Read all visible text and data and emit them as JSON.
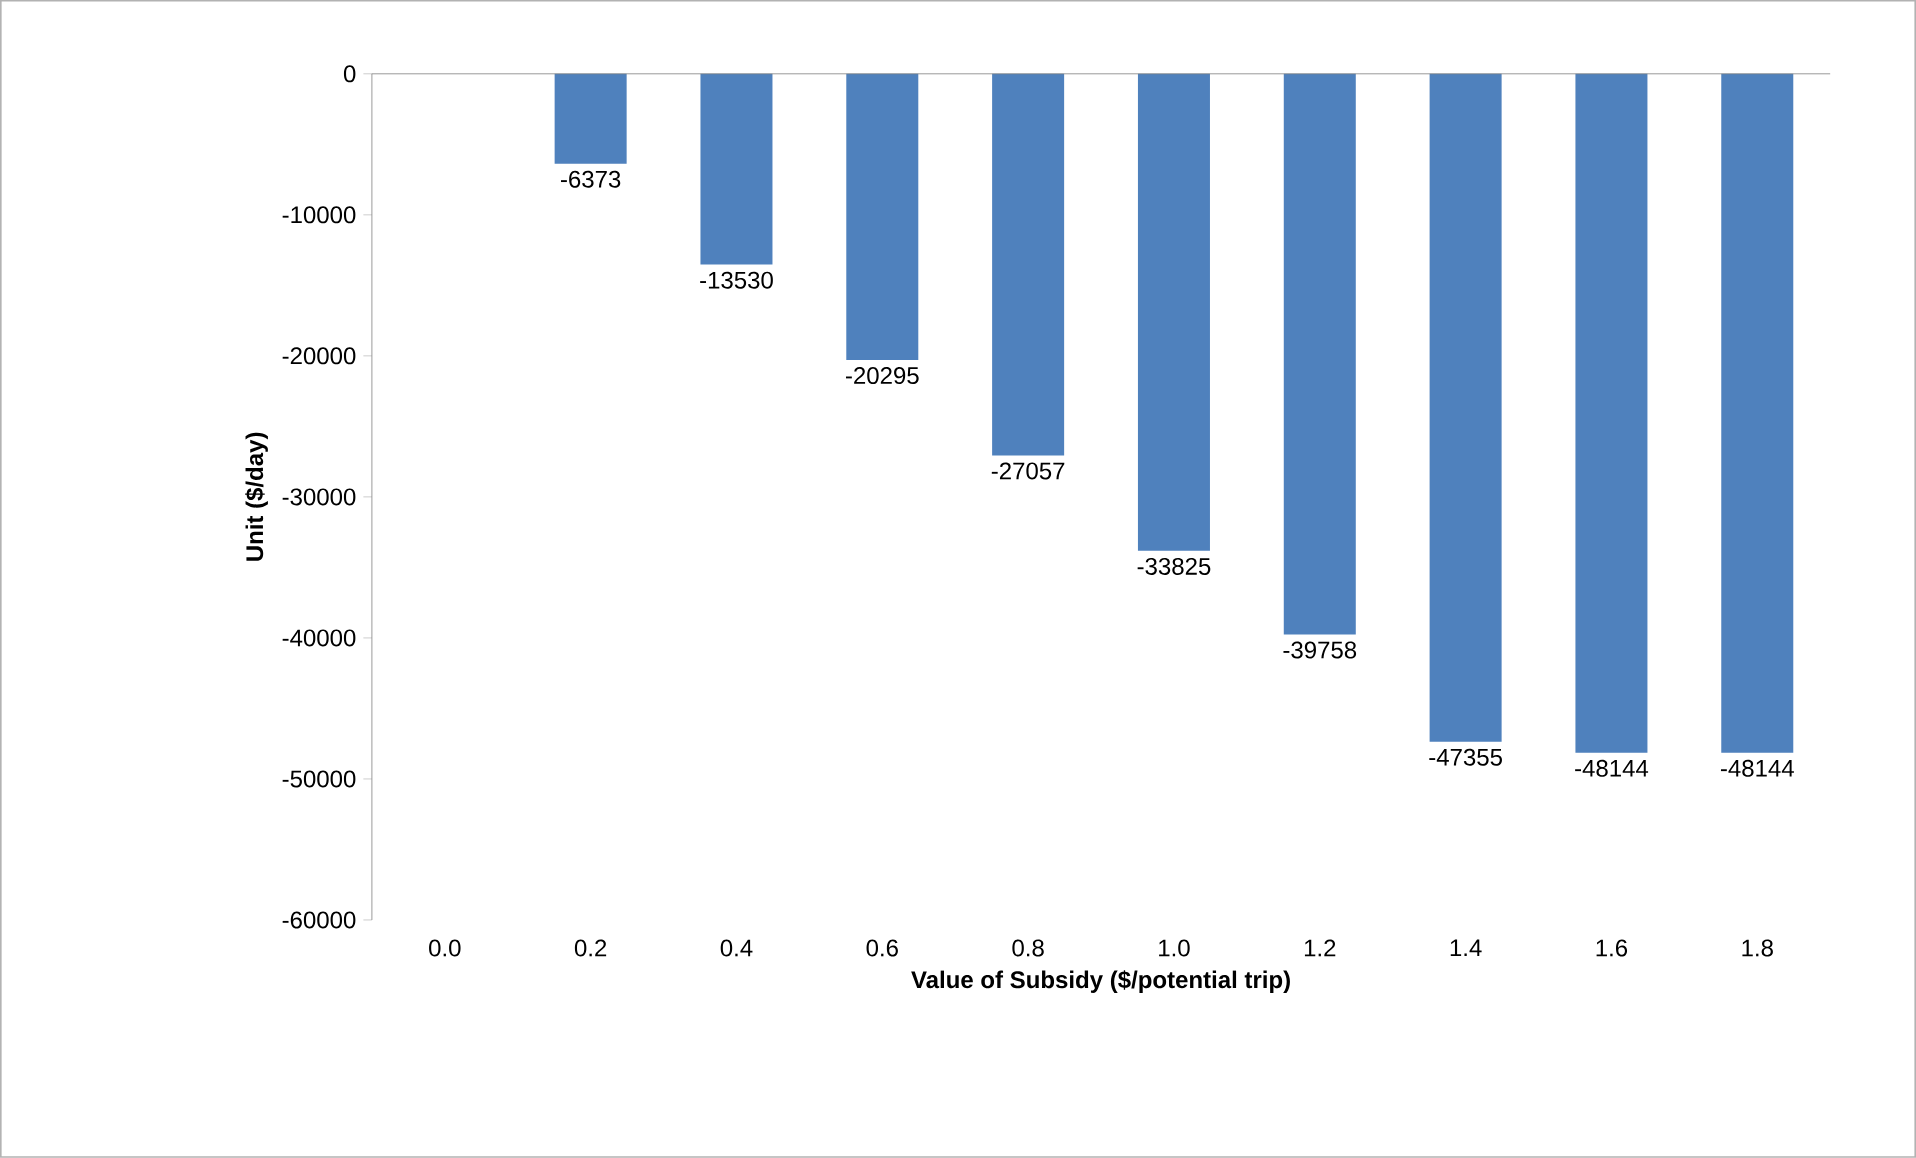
{
  "chart_data": {
    "type": "bar",
    "xlabel": "Value of Subsidy ($/potential trip)",
    "ylabel": "Unit ($/day)",
    "categories": [
      "0.0",
      "0.2",
      "0.4",
      "0.6",
      "0.8",
      "1.0",
      "1.2",
      "1.4",
      "1.6",
      "1.8"
    ],
    "values": [
      0,
      -6373,
      -13530,
      -20295,
      -27057,
      -33825,
      -39758,
      -47355,
      -48144,
      -48144
    ],
    "value_labels": [
      null,
      "-6373",
      "-13530",
      "-20295",
      "-27057",
      "-33825",
      "-39758",
      "-47355",
      "-48144",
      "-48144"
    ],
    "color": "#4f81bd",
    "ylim": [
      -60000,
      0
    ],
    "yticks": [
      -60000,
      -50000,
      -40000,
      -30000,
      -20000,
      -10000,
      0
    ]
  }
}
